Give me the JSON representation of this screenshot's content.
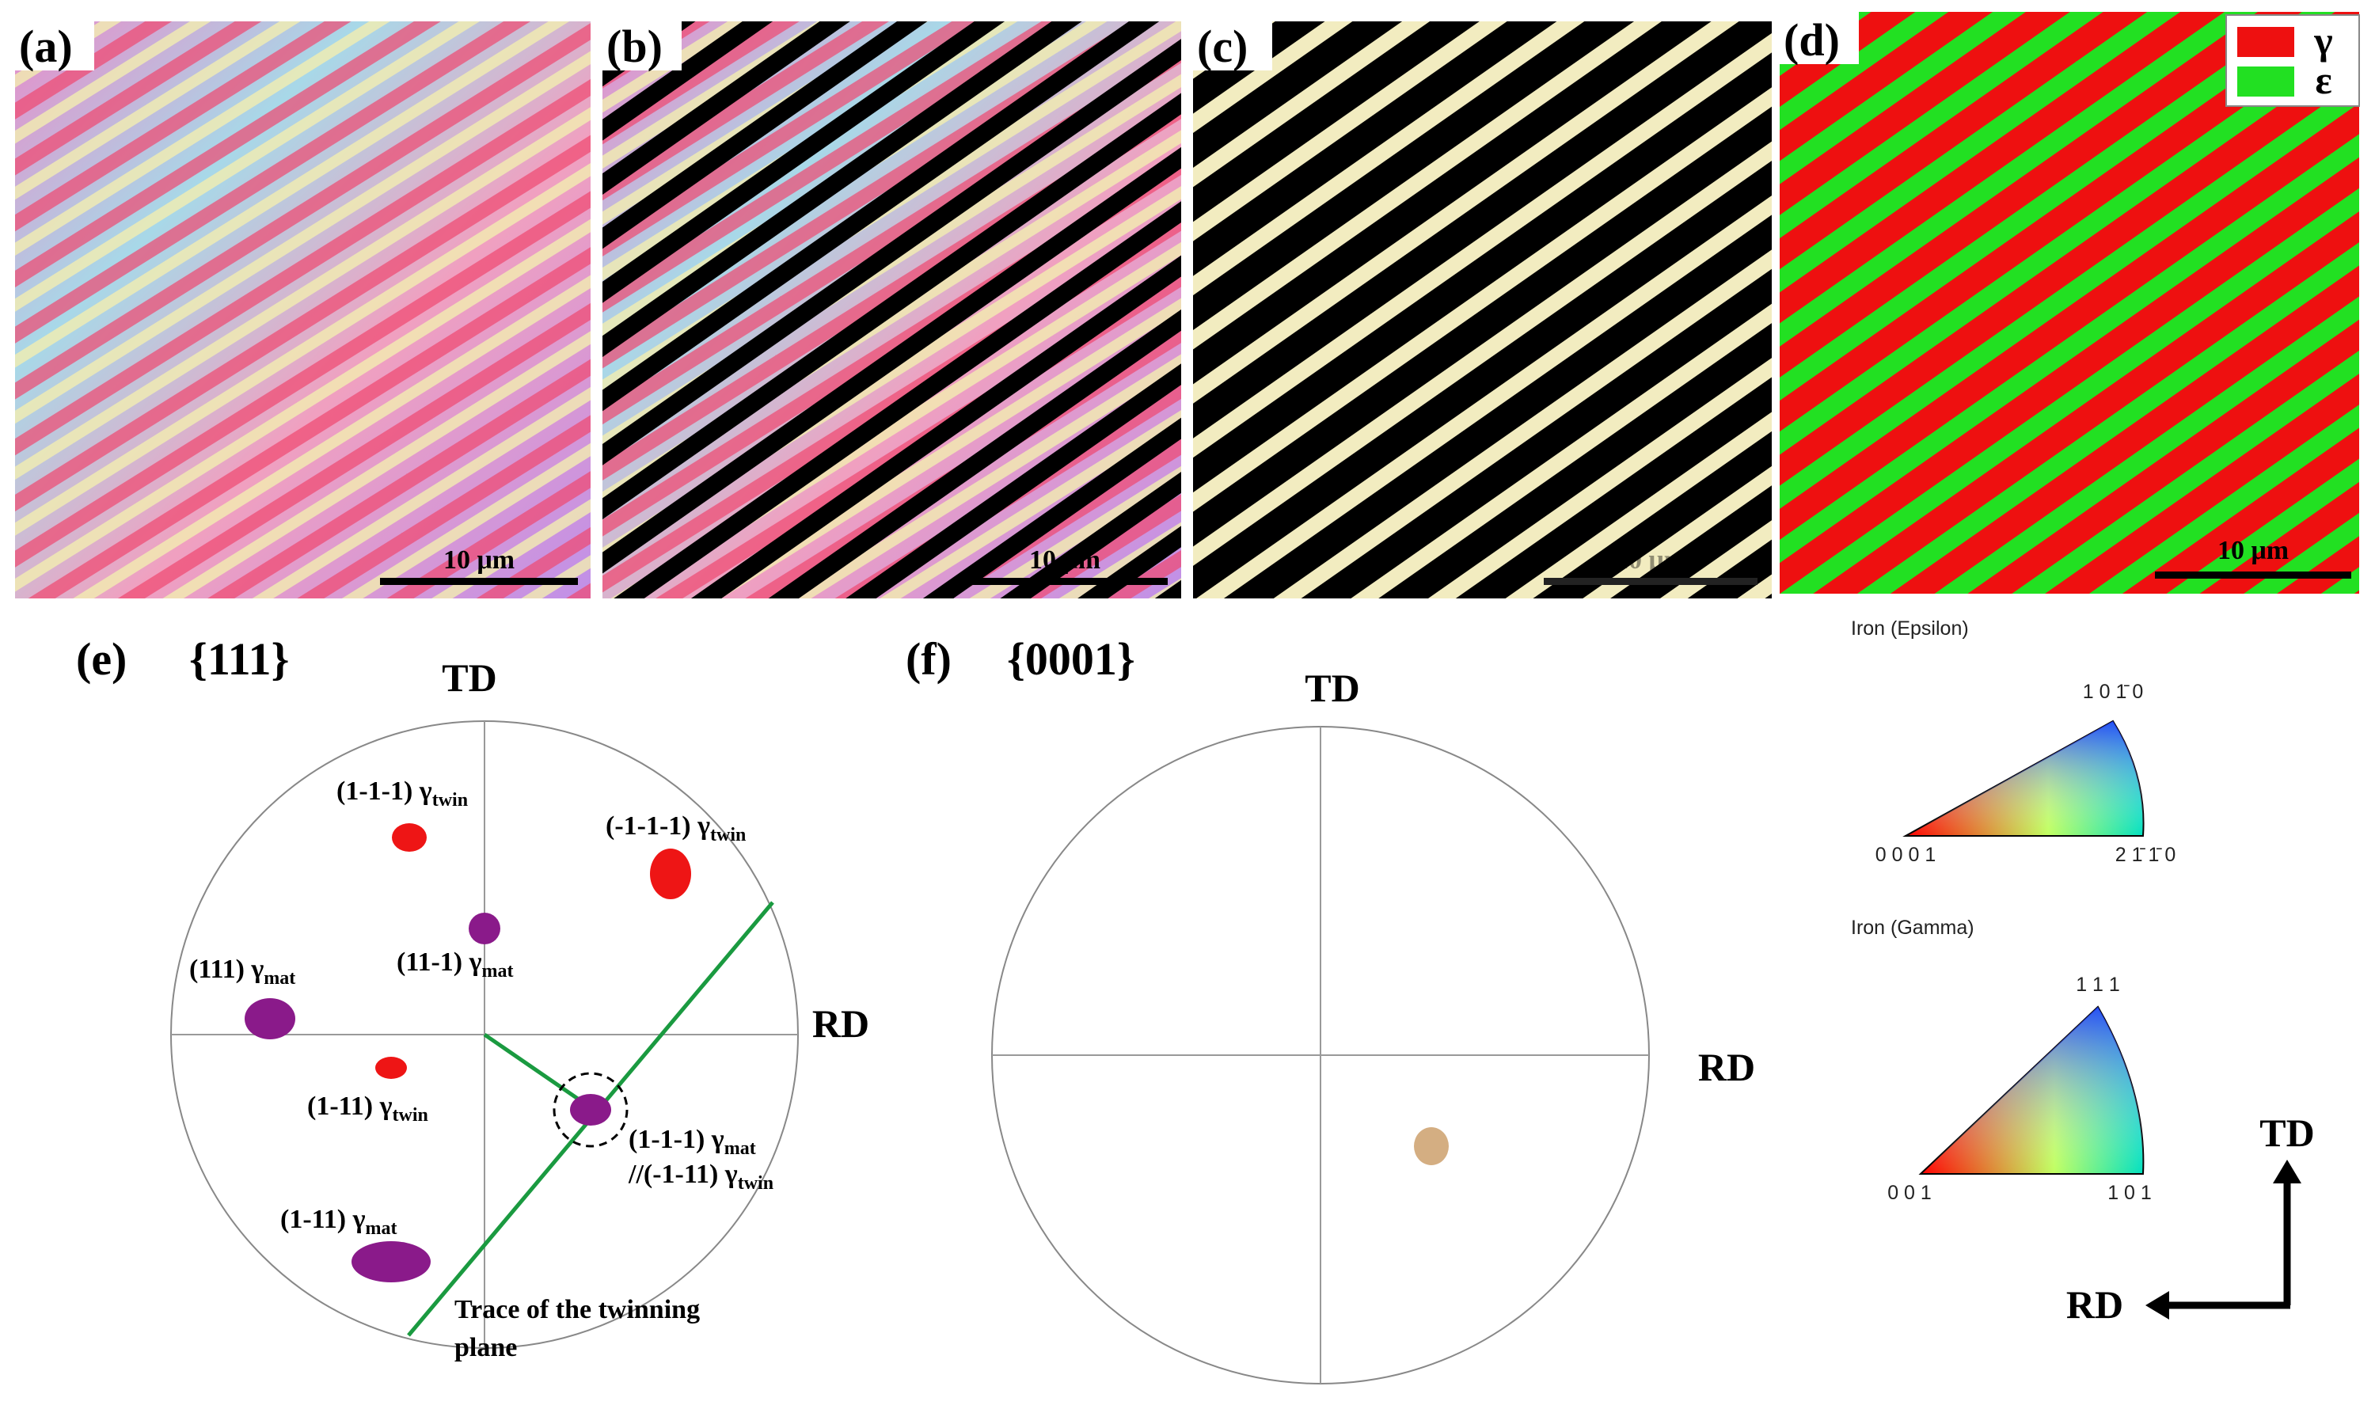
{
  "maps": [
    {
      "label": "(a)",
      "scale_bar": "10 μm"
    },
    {
      "label": "(b)",
      "scale_bar": "10 μm"
    },
    {
      "label": "(c)",
      "scale_bar": "10 μm"
    },
    {
      "label": "(d)",
      "scale_bar": "10 μm"
    }
  ],
  "legend": [
    "γ",
    "ε"
  ],
  "pole_figures": [
    {
      "label": "(e)",
      "plane": "{111}",
      "td": "TD",
      "rd": "RD",
      "annotations": [
        {
          "text": "(1-1-1) γ",
          "sub": "twin"
        },
        {
          "text": "(-1-1-1) γ",
          "sub": "twin"
        },
        {
          "text": "(11-1) γ",
          "sub": "mat"
        },
        {
          "text": "(111) γ",
          "sub": "mat"
        },
        {
          "text": "(1-11) γ",
          "sub": "twin"
        },
        {
          "text": "(1-1-1) γ",
          "sub": "mat"
        },
        {
          "text": "//(-1-11) γ",
          "sub": "twin"
        },
        {
          "text": "(1-11) γ",
          "sub": "mat"
        }
      ],
      "trace": [
        "Trace of the twinning",
        "plane"
      ]
    },
    {
      "label": "(f)",
      "plane": "{0001}",
      "td": "TD",
      "rd": "RD"
    }
  ],
  "ipf_keys": [
    {
      "title": "Iron (Epsilon)",
      "corners": [
        "0 0 0 1",
        "2 1̄ 1̄ 0",
        "1 0 1̄ 0"
      ]
    },
    {
      "title": "Iron (Gamma)",
      "corners": [
        "0 0 1",
        "1 0 1",
        "1 1 1"
      ]
    }
  ],
  "axes": {
    "td": "TD",
    "rd": "RD"
  }
}
